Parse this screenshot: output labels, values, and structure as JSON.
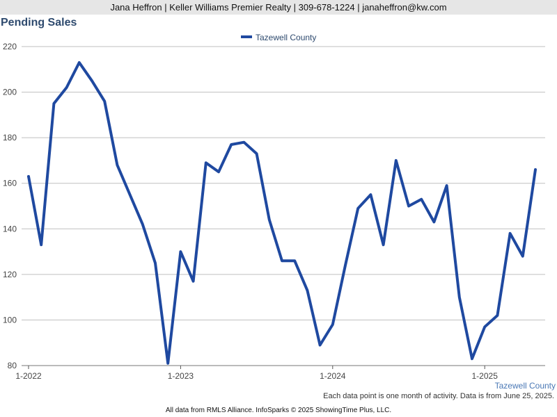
{
  "header": {
    "contact": "Jana Heffron | Keller Williams Premier Realty | 309-678-1224 | janaheffron@kw.com"
  },
  "chart_data": {
    "type": "line",
    "title": "Pending Sales",
    "xlabel": "",
    "ylabel": "",
    "ylim": [
      80,
      220
    ],
    "yticks": [
      "80",
      "100",
      "120",
      "140",
      "160",
      "180",
      "200",
      "220"
    ],
    "xticks": [
      {
        "label": "1-2022",
        "index": 0
      },
      {
        "label": "1-2023",
        "index": 12
      },
      {
        "label": "1-2024",
        "index": 24
      },
      {
        "label": "1-2025",
        "index": 36
      }
    ],
    "grid": true,
    "legend": "top-center",
    "series": [
      {
        "name": "Tazewell County",
        "color": "#1f49a0",
        "values": [
          163,
          133,
          195,
          202,
          213,
          205,
          196,
          168,
          155,
          142,
          125,
          81,
          130,
          117,
          169,
          165,
          177,
          178,
          173,
          144,
          126,
          126,
          113,
          89,
          98,
          124,
          149,
          155,
          133,
          170,
          150,
          153,
          143,
          159,
          110,
          83,
          97,
          102,
          138,
          128,
          166
        ]
      }
    ],
    "corner_label": "Tazewell County"
  },
  "footer": {
    "note": "Each data point is one month of activity. Data is from June 25, 2025.",
    "credit": "All data from RMLS Alliance. InfoSparks © 2025 ShowingTime Plus, LLC."
  },
  "colors": {
    "title": "#2e4a6e",
    "grid": "#bfbfbf",
    "header_bg": "#e6e6e6",
    "corner_label": "#4a78b5"
  }
}
